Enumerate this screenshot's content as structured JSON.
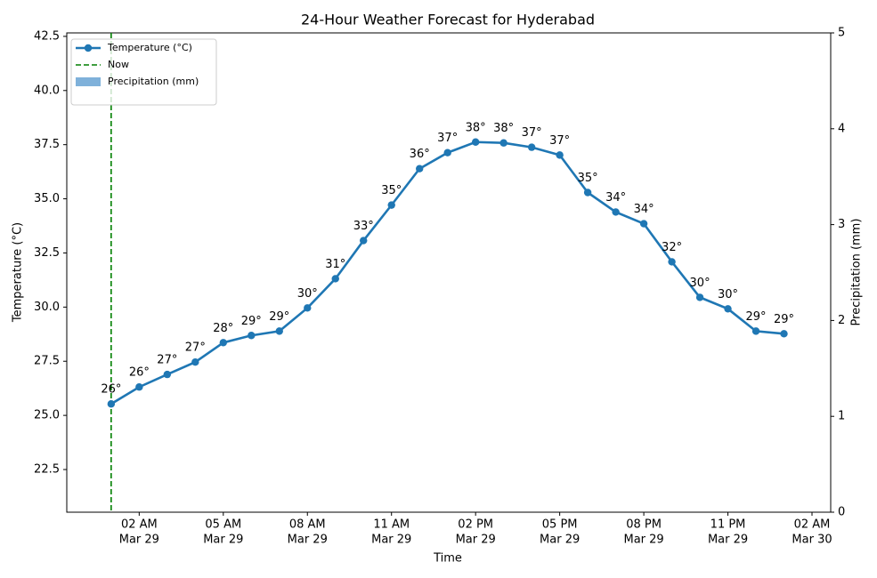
{
  "chart_data": {
    "type": "line",
    "title": "24-Hour Weather Forecast for Hyderabad",
    "xlabel": "Time",
    "ylabel": "Temperature (°C)",
    "y2label": "Precipitation (mm)",
    "x": [
      "Mar 29 01:00",
      "Mar 29 02:00",
      "Mar 29 03:00",
      "Mar 29 04:00",
      "Mar 29 05:00",
      "Mar 29 06:00",
      "Mar 29 07:00",
      "Mar 29 08:00",
      "Mar 29 09:00",
      "Mar 29 10:00",
      "Mar 29 11:00",
      "Mar 29 12:00",
      "Mar 29 13:00",
      "Mar 29 14:00",
      "Mar 29 15:00",
      "Mar 29 16:00",
      "Mar 29 17:00",
      "Mar 29 18:00",
      "Mar 29 19:00",
      "Mar 29 20:00",
      "Mar 29 21:00",
      "Mar 29 22:00",
      "Mar 29 23:00",
      "Mar 30 00:00",
      "Mar 30 01:00"
    ],
    "series": [
      {
        "name": "Temperature (°C)",
        "color": "#1f77b4",
        "type": "line",
        "values": [
          25.53,
          26.31,
          26.89,
          27.46,
          28.36,
          28.69,
          28.89,
          29.96,
          31.31,
          33.07,
          34.71,
          36.39,
          37.13,
          37.62,
          37.58,
          37.38,
          37.02,
          35.29,
          34.39,
          33.85,
          32.09,
          30.45,
          29.92,
          28.89,
          28.77
        ],
        "value_labels": [
          "26°",
          "26°",
          "27°",
          "27°",
          "28°",
          "29°",
          "29°",
          "30°",
          "31°",
          "33°",
          "35°",
          "36°",
          "37°",
          "38°",
          "38°",
          "37°",
          "37°",
          "35°",
          "34°",
          "34°",
          "32°",
          "30°",
          "30°",
          "29°",
          "29°"
        ]
      },
      {
        "name": "Precipitation (mm)",
        "color": "#5f9ed1",
        "type": "bar",
        "axis": "y2",
        "values": [
          0,
          0,
          0,
          0,
          0,
          0,
          0,
          0,
          0,
          0,
          0,
          0,
          0,
          0,
          0,
          0,
          0,
          0,
          0,
          0,
          0,
          0,
          0,
          0,
          0
        ]
      }
    ],
    "vlines": [
      {
        "name": "Now",
        "color": "#007f00",
        "x": "Mar 29 01:00"
      }
    ],
    "xlim": [
      "Mar 28 23:25",
      "Mar 30 02:40"
    ],
    "xticks": [
      {
        "value": "Mar 29 02:00",
        "label": "02 AM",
        "date": "Mar 29"
      },
      {
        "value": "Mar 29 05:00",
        "label": "05 AM",
        "date": "Mar 29"
      },
      {
        "value": "Mar 29 08:00",
        "label": "08 AM",
        "date": "Mar 29"
      },
      {
        "value": "Mar 29 11:00",
        "label": "11 AM",
        "date": "Mar 29"
      },
      {
        "value": "Mar 29 14:00",
        "label": "02 PM",
        "date": "Mar 29"
      },
      {
        "value": "Mar 29 17:00",
        "label": "05 PM",
        "date": "Mar 29"
      },
      {
        "value": "Mar 29 20:00",
        "label": "08 PM",
        "date": "Mar 29"
      },
      {
        "value": "Mar 29 23:00",
        "label": "11 PM",
        "date": "Mar 29"
      },
      {
        "value": "Mar 30 02:00",
        "label": "02 AM",
        "date": "Mar 30"
      }
    ],
    "ylim": [
      20.53,
      42.66
    ],
    "yticks": [
      22.5,
      {
        "value": 25,
        "label": "25.0"
      },
      27.5,
      {
        "value": 30,
        "label": "30.0"
      },
      32.5,
      {
        "value": 35,
        "label": "35.0"
      },
      37.5,
      {
        "value": 40,
        "label": "40.0"
      },
      42.5
    ],
    "y2lim": [
      0,
      5
    ],
    "y2ticks": [
      0,
      1,
      2,
      3,
      4,
      5
    ],
    "grid": false,
    "legend": "upper-left"
  }
}
